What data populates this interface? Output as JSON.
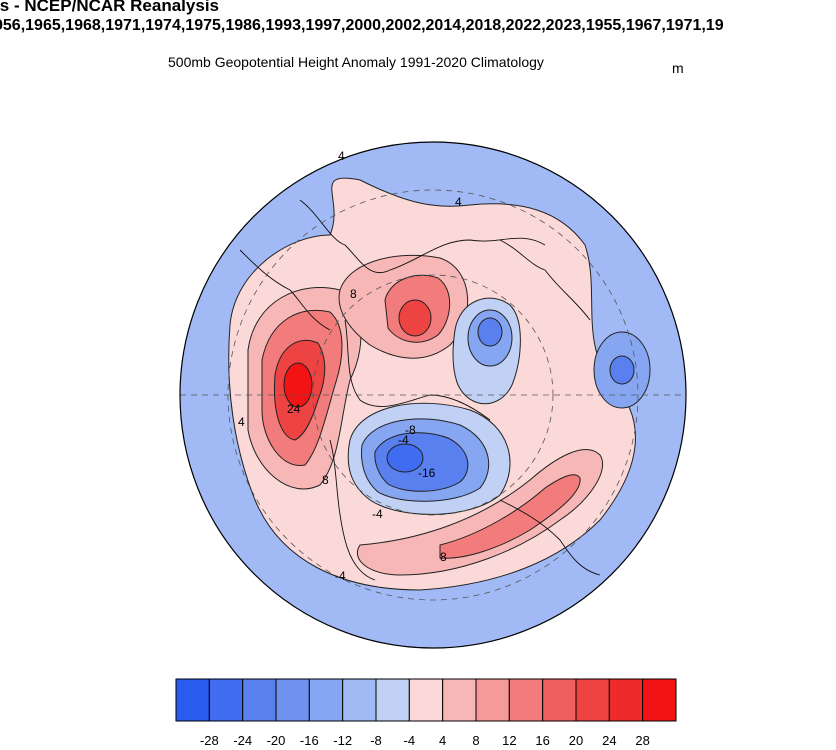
{
  "title": "alysis - NCEP/NCAR Reanalysis",
  "years": "956,1965,1968,1971,1974,1975,1986,1993,1997,2000,2002,2014,2018,2022,2023,1955,1967,1971,19",
  "subtitle": "500mb Geopotential Height Anomaly  1991-2020 Climatology",
  "units": "m",
  "colorbar": {
    "colors": [
      "#2a5cf0",
      "#3f6cf0",
      "#5a80f0",
      "#6f92ef",
      "#86a6f2",
      "#a1baf5",
      "#c1d1f6",
      "#fcd9d9",
      "#f8b7b7",
      "#f59999",
      "#f27b7b",
      "#ef5f5f",
      "#ed4343",
      "#ee2a2a",
      "#f21414"
    ],
    "ticks": [
      "-28",
      "-24",
      "-20",
      "-16",
      "-12",
      "-8",
      "-4",
      "4",
      "8",
      "12",
      "16",
      "20",
      "24",
      "28"
    ]
  },
  "contour_labels": [
    {
      "text": "4",
      "color": "#000000"
    },
    {
      "text": "4",
      "color": "#000000"
    },
    {
      "text": "8",
      "color": "#000000"
    },
    {
      "text": "24",
      "color": "#000000"
    },
    {
      "text": "8",
      "color": "#000000"
    },
    {
      "text": "-4",
      "color": "#000000"
    },
    {
      "text": "-4",
      "color": "#000000"
    },
    {
      "text": "8",
      "color": "#000000"
    },
    {
      "text": "-4",
      "color": "#000000"
    },
    {
      "text": "-16",
      "color": "#000000"
    },
    {
      "text": "-8",
      "color": "#000000"
    },
    {
      "text": "4",
      "color": "#000000"
    }
  ]
}
